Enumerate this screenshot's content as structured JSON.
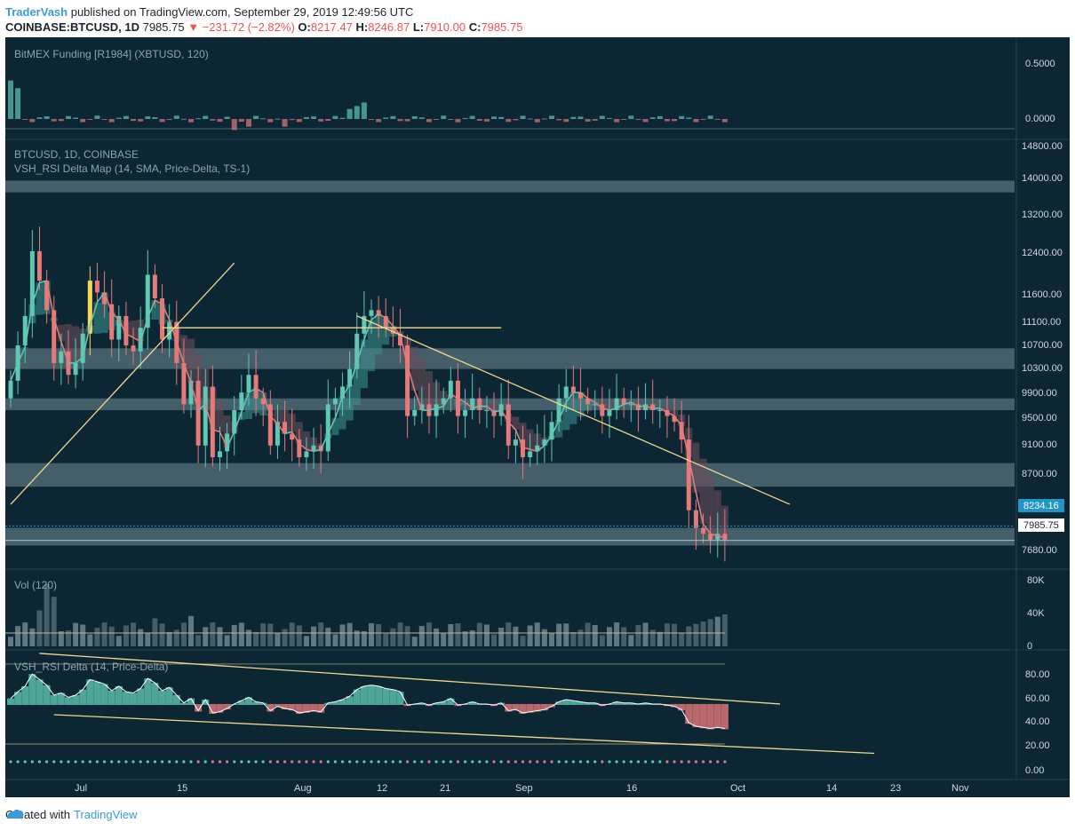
{
  "header": {
    "author": "TraderVash",
    "published_text": " published on TradingView.com, September 29, 2019 12:49:56 UTC",
    "symbol": "COINBASE:BTCUSD, 1D",
    "last": "7985.75",
    "change": "▼ −231.72 (−2.82%)",
    "o_label": "O:",
    "o_value": "8217.47",
    "h_label": "H:",
    "h_value": "8246.87",
    "l_label": "L:",
    "l_value": "7910.00",
    "c_label": "C:",
    "c_value": "7985.75"
  },
  "footer": {
    "created_with": "Created with",
    "brand": "TradingView"
  },
  "panels": {
    "funding_label": "BitMEX Funding [R1984] (XBTUSD, 120)",
    "price_label_1": "BTCUSD, 1D, COINBASE",
    "price_label_2": "VSH_RSI Delta Map (14, SMA, Price-Delta, TS-1)",
    "vol_label": "Vol (120)",
    "rsi_label": "VSH_RSI Delta (14, Price-Delta)"
  },
  "axes": {
    "funding_ticks": [
      "0.5000",
      "0.0000"
    ],
    "price_ticks": [
      "14800.00",
      "14000.00",
      "13200.00",
      "12400.00",
      "11600.00",
      "11100.00",
      "10700.00",
      "10300.00",
      "9900.00",
      "9500.00",
      "9100.00",
      "8700.00",
      "7680.00"
    ],
    "price_badge_blue": "8234.16",
    "price_badge_white": "7985.75",
    "vol_ticks": [
      "80K",
      "40K",
      "0"
    ],
    "rsi_ticks": [
      "80.00",
      "60.00",
      "40.00",
      "20.00",
      "0.00"
    ],
    "date_ticks": [
      "Jul",
      "15",
      "Aug",
      "12",
      "21",
      "Sep",
      "16",
      "Oct",
      "14",
      "23",
      "Nov"
    ]
  },
  "colors": {
    "background": "#0c2634",
    "bull": "#5fc7b2",
    "bear": "#e57a7a",
    "highlight": "#f7d95a",
    "trendline": "#f3d98c",
    "zone": "#8aa3ad"
  },
  "chart_data": [
    {
      "type": "candlestick",
      "title": "BTCUSD, 1D, COINBASE",
      "ylim": [
        7500,
        14800
      ],
      "x_start": "2019-06-23",
      "x_end": "2019-09-29",
      "series_close": [
        10700,
        11300,
        11800,
        12900,
        12400,
        11900,
        11000,
        11200,
        10800,
        11000,
        11500,
        12400,
        12200,
        12000,
        11400,
        11800,
        11300,
        11200,
        11600,
        12500,
        12100,
        11400,
        11700,
        11000,
        10300,
        10700,
        9600,
        10600,
        9400,
        9500,
        9800,
        10200,
        10500,
        10800,
        10400,
        10300,
        9600,
        10000,
        9800,
        9700,
        9400,
        9500,
        9600,
        9500,
        10300,
        10400,
        10600,
        10900,
        11500,
        11800,
        11900,
        11800,
        11600,
        11500,
        11300,
        10100,
        10200,
        10300,
        10100,
        10300,
        10400,
        10700,
        10100,
        10200,
        10400,
        10200,
        10200,
        10100,
        10300,
        9600,
        9700,
        9400,
        9500,
        9600,
        9700,
        10000,
        10400,
        10600,
        10500,
        10400,
        10300,
        10300,
        10100,
        10200,
        10400,
        10300,
        10300,
        10200,
        10300,
        10200,
        10200,
        10100,
        10000,
        9700,
        8500,
        8200,
        8100,
        8000,
        8100,
        8000
      ],
      "trendlines": [
        {
          "from": [
            "2019-06-23",
            8600
          ],
          "to": [
            "2019-07-24",
            12700
          ]
        },
        {
          "from": [
            "2019-08-10",
            11800
          ],
          "to": [
            "2019-10-09",
            8600
          ]
        },
        {
          "from": [
            "2019-07-14",
            11600
          ],
          "to": [
            "2019-08-30",
            11600
          ]
        }
      ],
      "zones": [
        [
          13900,
          14100
        ],
        [
          10900,
          11250
        ],
        [
          10200,
          10400
        ],
        [
          8900,
          9300
        ],
        [
          7900,
          8200
        ]
      ]
    },
    {
      "type": "bar",
      "title": "Vol (120)",
      "ylim": [
        0,
        80000
      ]
    },
    {
      "type": "bar",
      "title": "BitMEX Funding [R1984] (XBTUSD, 120)",
      "ylim": [
        0,
        0.5
      ]
    },
    {
      "type": "area",
      "title": "VSH_RSI Delta (14, Price-Delta)",
      "ylim": [
        0,
        100
      ]
    }
  ]
}
